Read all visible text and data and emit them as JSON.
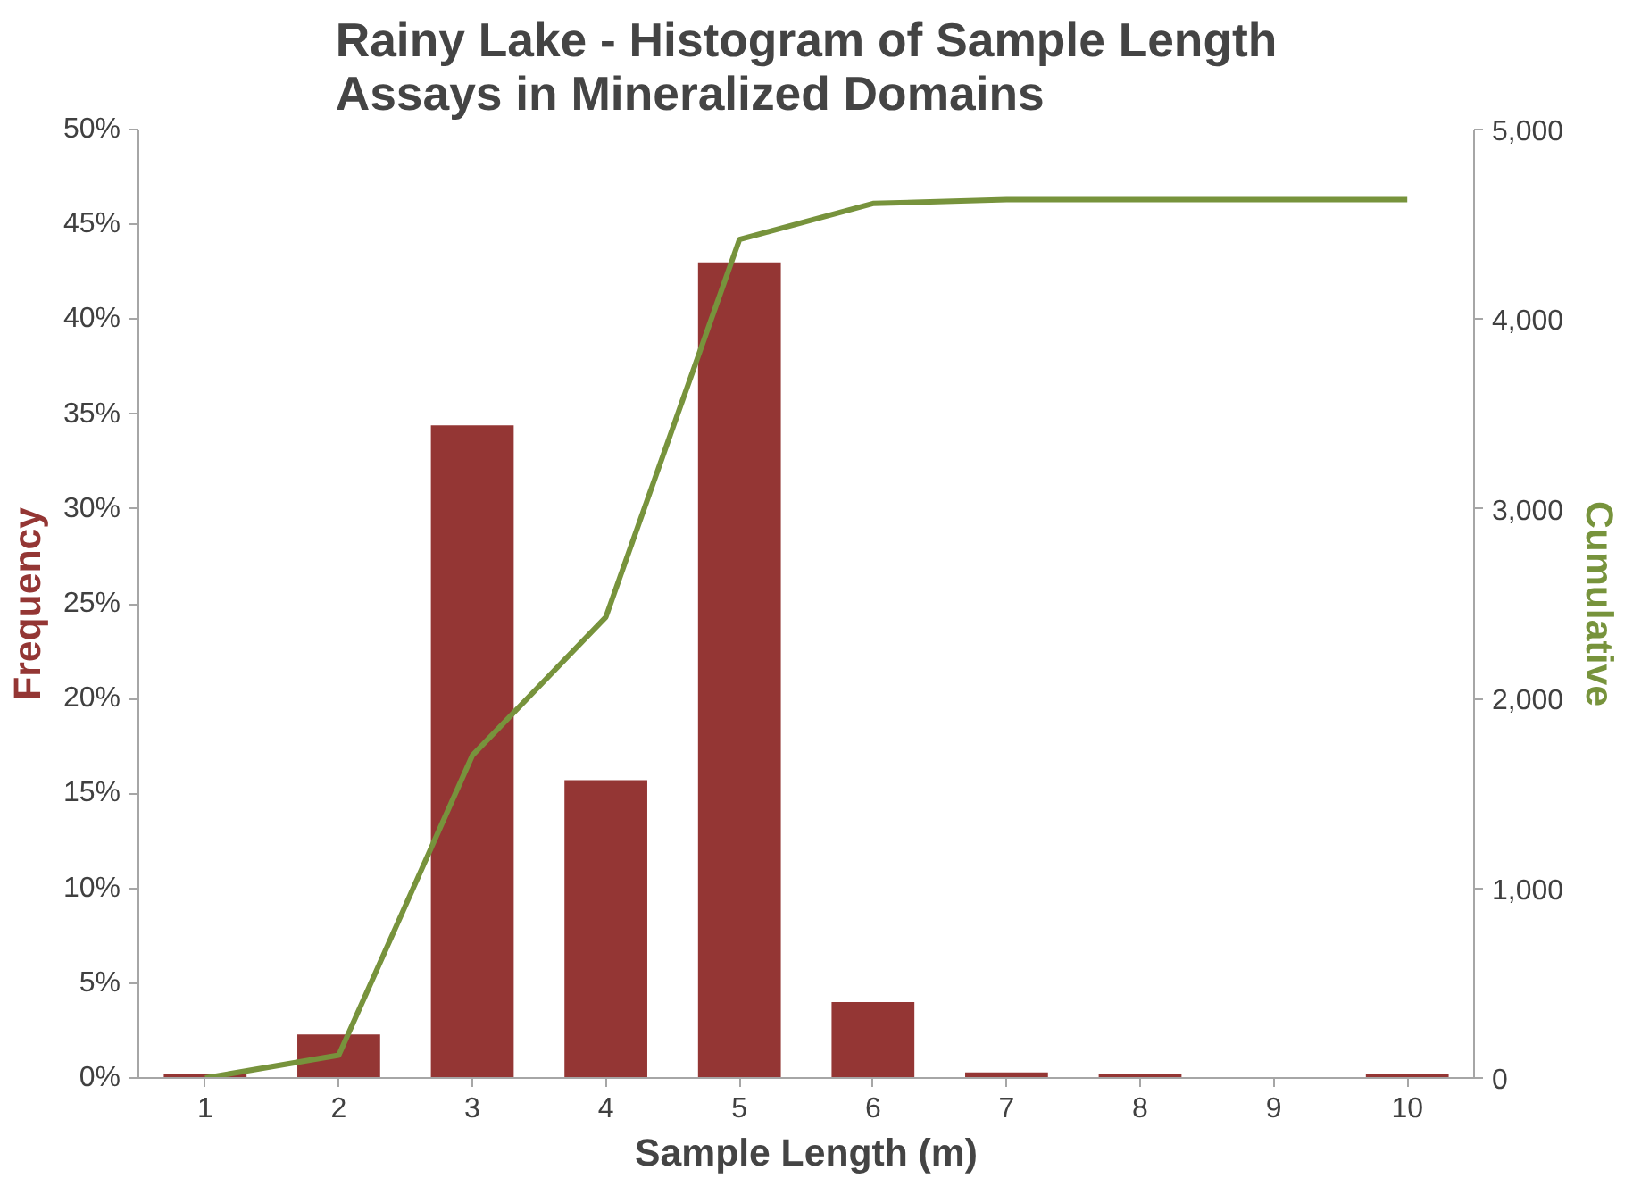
{
  "chart_data": {
    "type": "bar",
    "title": "Rainy Lake - Histogram of Sample Length\nAssays in Mineralized Domains",
    "xlabel": "Sample Length (m)",
    "ylabel": "Frequency",
    "y2label": "Cumulative",
    "categories": [
      "1",
      "2",
      "3",
      "4",
      "5",
      "6",
      "7",
      "8",
      "9",
      "10"
    ],
    "series": [
      {
        "color": "#943634",
        "values": [
          0.2,
          2.3,
          34.4,
          15.7,
          43.0,
          4.0,
          0.3,
          0.2,
          0,
          0.2
        ]
      },
      {
        "type": "line",
        "axis": "y2",
        "color": "#77933c",
        "values": [
          0,
          120,
          1700,
          2430,
          4420,
          4610,
          4630,
          4630,
          4630,
          4630
        ]
      }
    ],
    "ylim": [
      0,
      50
    ],
    "yticks": [
      {
        "value": 0,
        "label": "0%"
      },
      {
        "value": 5,
        "label": "5%"
      },
      {
        "value": 10,
        "label": "10%"
      },
      {
        "value": 15,
        "label": "15%"
      },
      {
        "value": 20,
        "label": "20%"
      },
      {
        "value": 25,
        "label": "25%"
      },
      {
        "value": 30,
        "label": "30%"
      },
      {
        "value": 35,
        "label": "35%"
      },
      {
        "value": 40,
        "label": "40%"
      },
      {
        "value": 45,
        "label": "45%"
      },
      {
        "value": 50,
        "label": "50%"
      }
    ],
    "y2lim": [
      0,
      5000
    ],
    "y2ticks": [
      {
        "value": 0,
        "label": "0"
      },
      {
        "value": 1000,
        "label": "1,000"
      },
      {
        "value": 2000,
        "label": "2,000"
      },
      {
        "value": 3000,
        "label": "3,000"
      },
      {
        "value": 4000,
        "label": "4,000"
      },
      {
        "value": 5000,
        "label": "5,000"
      }
    ]
  }
}
